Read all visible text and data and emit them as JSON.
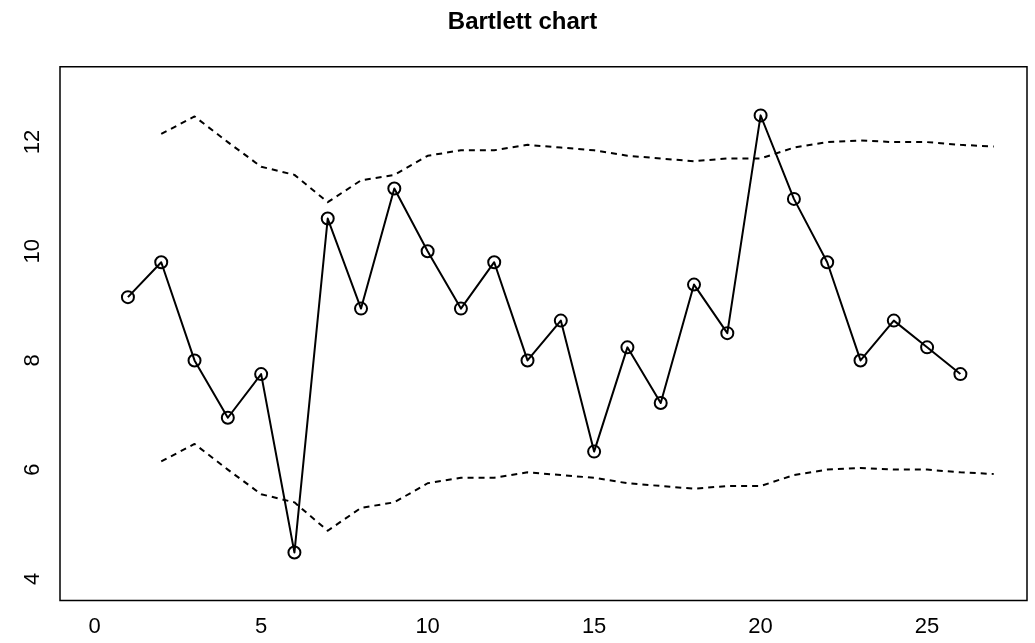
{
  "chart_data": {
    "type": "line",
    "title": "Bartlett chart",
    "xlim": [
      -1.04,
      28.0
    ],
    "xticks": [
      0,
      5,
      10,
      15,
      20,
      25
    ],
    "ylim": [
      3.6,
      13.38
    ],
    "yticks": [
      4,
      6,
      8,
      10,
      12
    ],
    "grid": false,
    "legend": false,
    "series": [
      {
        "color": "#000000",
        "marker": "circle",
        "line_style": "solid",
        "x": [
          1,
          2,
          3,
          4,
          5,
          6,
          7,
          8,
          9,
          10,
          11,
          12,
          13,
          14,
          15,
          16,
          17,
          18,
          19,
          20,
          21,
          22,
          23,
          24,
          25,
          26
        ],
        "values": [
          9.16,
          9.8,
          8.0,
          6.95,
          7.75,
          4.48,
          10.6,
          8.95,
          11.15,
          10.0,
          8.95,
          9.8,
          8.0,
          8.73,
          6.33,
          8.24,
          7.22,
          9.39,
          8.5,
          12.49,
          10.96,
          9.8,
          8.0,
          8.73,
          8.24,
          7.75
        ]
      },
      {
        "color": "#000000",
        "marker": "none",
        "line_style": "dashed",
        "x": [
          2,
          3,
          4,
          5,
          6,
          7,
          8,
          9,
          10,
          11,
          12,
          13,
          14,
          15,
          16,
          17,
          18,
          19,
          20,
          21,
          22,
          23,
          24,
          25,
          26,
          27
        ],
        "values": [
          12.15,
          12.47,
          12.0,
          11.55,
          11.4,
          10.9,
          11.3,
          11.4,
          11.75,
          11.85,
          11.85,
          11.95,
          11.9,
          11.85,
          11.75,
          11.7,
          11.65,
          11.7,
          11.7,
          11.9,
          12.0,
          12.03,
          12.0,
          12.0,
          11.95,
          11.92
        ]
      },
      {
        "color": "#000000",
        "marker": "none",
        "line_style": "dashed",
        "x": [
          2,
          3,
          4,
          5,
          6,
          7,
          8,
          9,
          10,
          11,
          12,
          13,
          14,
          15,
          16,
          17,
          18,
          19,
          20,
          21,
          22,
          23,
          24,
          25,
          26,
          27
        ],
        "values": [
          6.15,
          6.47,
          6.0,
          5.55,
          5.4,
          4.88,
          5.3,
          5.4,
          5.75,
          5.85,
          5.85,
          5.95,
          5.9,
          5.85,
          5.75,
          5.7,
          5.65,
          5.7,
          5.7,
          5.9,
          6.0,
          6.03,
          6.0,
          6.0,
          5.95,
          5.92
        ]
      }
    ]
  }
}
